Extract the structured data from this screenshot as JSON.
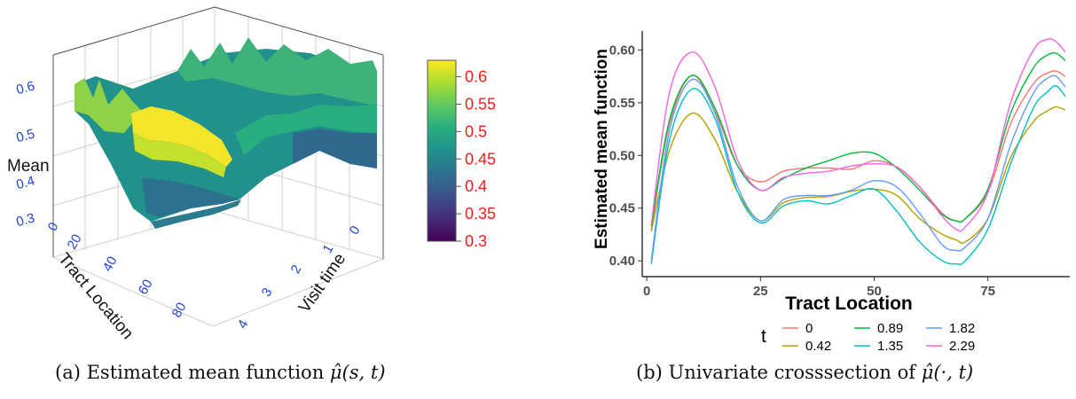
{
  "captions": {
    "a_prefix": "(a) Estimated mean function ",
    "a_math": "μ̂(s, t)",
    "b_prefix": "(b) Univariate crosssection of ",
    "b_math": "μ̂(·, t)"
  },
  "chart_data": [
    {
      "type": "surface",
      "z_axis_label": "Mean",
      "x_axis_label": "Tract Location",
      "y_axis_label": "Visit time",
      "x_ticks": [
        "0",
        "20",
        "40",
        "60",
        "80"
      ],
      "y_ticks": [
        "0",
        "1",
        "2",
        "3",
        "4"
      ],
      "z_ticks": [
        "0.3",
        "0.4",
        "0.5",
        "0.6"
      ],
      "zlim": [
        0.3,
        0.63
      ],
      "colorbar": {
        "palette": "viridis",
        "ticks": [
          "0.3",
          "0.35",
          "0.4",
          "0.45",
          "0.5",
          "0.55",
          "0.6"
        ],
        "range": [
          0.3,
          0.63
        ],
        "tick_color": "#ff1a1a"
      },
      "colors": {
        "axis_tick": "#1f44d8",
        "grid": "#cccccc"
      }
    },
    {
      "type": "line",
      "xlabel": "Tract Location",
      "ylabel": "Estimated mean function",
      "xlim": [
        -1,
        93
      ],
      "ylim": [
        0.385,
        0.618
      ],
      "x_ticks": [
        0,
        25,
        50,
        75
      ],
      "y_ticks": [
        0.4,
        0.45,
        0.5,
        0.55,
        0.6
      ],
      "y_tick_labels": [
        "0.40",
        "0.45",
        "0.50",
        "0.55",
        "0.60"
      ],
      "legend_title": "t",
      "legend_position": "bottom",
      "grid": false,
      "series": [
        {
          "name": "0",
          "color": "#f8766d",
          "x": [
            1,
            5,
            10,
            15,
            20,
            25,
            30,
            35,
            40,
            45,
            50,
            55,
            60,
            65,
            68,
            70,
            75,
            80,
            85,
            88,
            90,
            92
          ],
          "y": [
            0.43,
            0.53,
            0.576,
            0.542,
            0.49,
            0.475,
            0.485,
            0.488,
            0.488,
            0.487,
            0.495,
            0.489,
            0.47,
            0.445,
            0.438,
            0.44,
            0.465,
            0.53,
            0.568,
            0.578,
            0.58,
            0.575
          ]
        },
        {
          "name": "0.42",
          "color": "#b79f00",
          "x": [
            1,
            5,
            10,
            15,
            20,
            25,
            30,
            35,
            40,
            45,
            50,
            55,
            60,
            65,
            68,
            70,
            75,
            80,
            85,
            88,
            90,
            92
          ],
          "y": [
            0.428,
            0.505,
            0.54,
            0.515,
            0.465,
            0.438,
            0.455,
            0.46,
            0.461,
            0.466,
            0.468,
            0.462,
            0.44,
            0.425,
            0.42,
            0.418,
            0.44,
            0.498,
            0.532,
            0.542,
            0.546,
            0.543
          ]
        },
        {
          "name": "0.89",
          "color": "#00ba38",
          "x": [
            1,
            5,
            10,
            15,
            20,
            25,
            30,
            35,
            40,
            45,
            50,
            55,
            60,
            65,
            68,
            70,
            75,
            80,
            85,
            88,
            90,
            92
          ],
          "y": [
            0.433,
            0.534,
            0.576,
            0.545,
            0.49,
            0.467,
            0.478,
            0.488,
            0.495,
            0.502,
            0.502,
            0.488,
            0.467,
            0.444,
            0.438,
            0.44,
            0.468,
            0.54,
            0.583,
            0.595,
            0.597,
            0.59
          ]
        },
        {
          "name": "1.35",
          "color": "#00bfc4",
          "x": [
            1,
            5,
            10,
            15,
            20,
            25,
            30,
            35,
            40,
            45,
            50,
            55,
            60,
            65,
            68,
            70,
            75,
            80,
            85,
            88,
            90,
            92
          ],
          "y": [
            0.397,
            0.515,
            0.563,
            0.535,
            0.465,
            0.436,
            0.452,
            0.457,
            0.454,
            0.462,
            0.468,
            0.447,
            0.418,
            0.4,
            0.397,
            0.4,
            0.43,
            0.492,
            0.545,
            0.56,
            0.566,
            0.556
          ]
        },
        {
          "name": "1.82",
          "color": "#619cff",
          "x": [
            1,
            5,
            10,
            15,
            20,
            25,
            30,
            35,
            40,
            45,
            50,
            55,
            60,
            65,
            68,
            70,
            75,
            80,
            85,
            88,
            90,
            92
          ],
          "y": [
            0.401,
            0.524,
            0.572,
            0.54,
            0.47,
            0.438,
            0.458,
            0.462,
            0.462,
            0.467,
            0.476,
            0.47,
            0.445,
            0.415,
            0.41,
            0.413,
            0.44,
            0.51,
            0.559,
            0.573,
            0.575,
            0.565
          ]
        },
        {
          "name": "2.29",
          "color": "#f564e3",
          "x": [
            1,
            5,
            10,
            15,
            20,
            25,
            30,
            35,
            40,
            45,
            50,
            55,
            60,
            65,
            68,
            70,
            75,
            80,
            85,
            88,
            90,
            92
          ],
          "y": [
            0.435,
            0.56,
            0.598,
            0.565,
            0.495,
            0.467,
            0.479,
            0.483,
            0.485,
            0.49,
            0.492,
            0.489,
            0.47,
            0.442,
            0.43,
            0.432,
            0.465,
            0.55,
            0.6,
            0.61,
            0.608,
            0.598
          ]
        }
      ]
    }
  ]
}
